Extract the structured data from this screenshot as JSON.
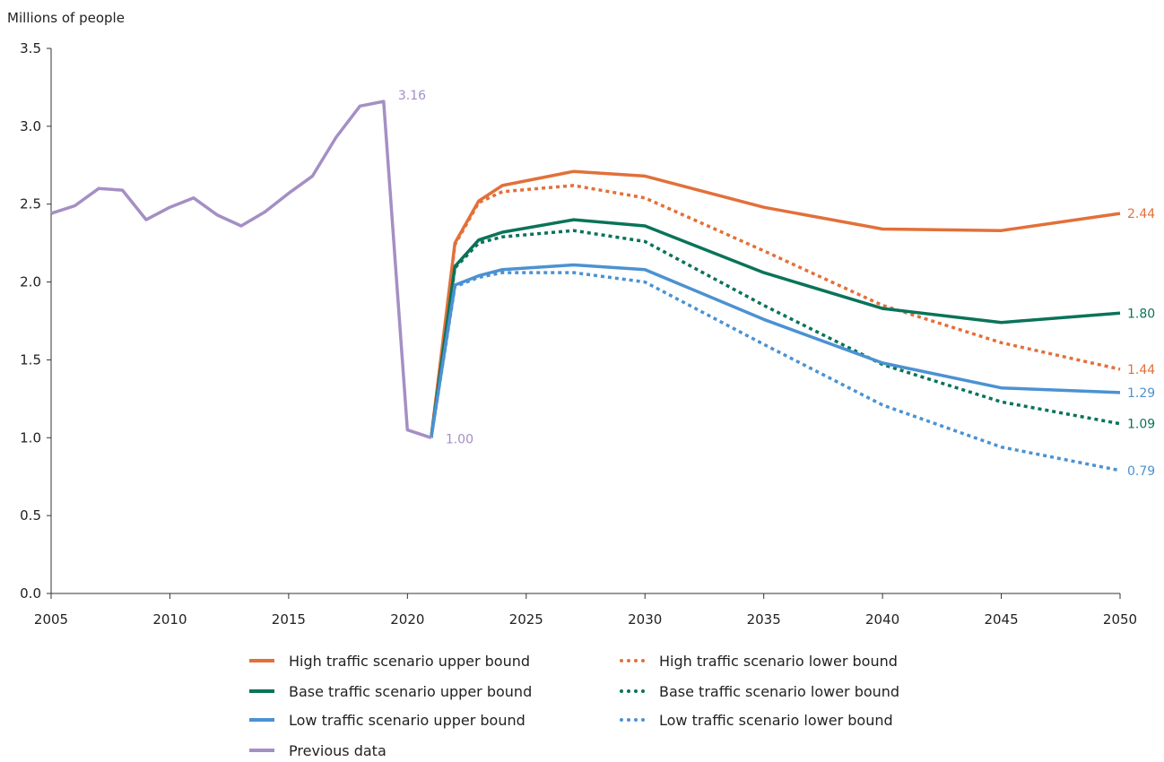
{
  "chart_data": {
    "type": "line",
    "ylabel": "Millions of people",
    "xlim": [
      2005,
      2050
    ],
    "ylim": [
      0,
      3.5
    ],
    "x_ticks": [
      "2005",
      "2010",
      "2015",
      "2020",
      "2025",
      "2030",
      "2035",
      "2040",
      "2045",
      "2050"
    ],
    "y_ticks": [
      "0.0",
      "0.5",
      "1.0",
      "1.5",
      "2.0",
      "2.5",
      "3.0",
      "3.5"
    ],
    "grid": false,
    "legend_position": "bottom",
    "series": [
      {
        "name": "Previous data",
        "color": "#a48fc4",
        "style": "solid",
        "x": [
          2005,
          2006,
          2007,
          2008,
          2009,
          2010,
          2011,
          2012,
          2013,
          2014,
          2015,
          2016,
          2017,
          2018,
          2019,
          2020,
          2021
        ],
        "y": [
          2.44,
          2.49,
          2.6,
          2.59,
          2.4,
          2.48,
          2.54,
          2.43,
          2.36,
          2.45,
          2.57,
          2.68,
          2.93,
          3.13,
          3.16,
          1.05,
          1.0
        ]
      },
      {
        "name": "High traffic scenario upper bound",
        "color": "#e2703a",
        "style": "solid",
        "x": [
          2021,
          2022,
          2023,
          2024,
          2027,
          2030,
          2035,
          2040,
          2045,
          2050
        ],
        "y": [
          1.0,
          2.25,
          2.52,
          2.62,
          2.71,
          2.68,
          2.48,
          2.34,
          2.33,
          2.44
        ]
      },
      {
        "name": "High traffic scenario lower bound",
        "color": "#e2703a",
        "style": "dotted",
        "x": [
          2021,
          2022,
          2023,
          2024,
          2027,
          2030,
          2035,
          2040,
          2045,
          2050
        ],
        "y": [
          1.0,
          2.24,
          2.51,
          2.58,
          2.62,
          2.54,
          2.2,
          1.85,
          1.61,
          1.44
        ]
      },
      {
        "name": "Base traffic scenario upper bound",
        "color": "#0a7359",
        "style": "solid",
        "x": [
          2021,
          2022,
          2023,
          2024,
          2027,
          2030,
          2035,
          2040,
          2045,
          2050
        ],
        "y": [
          1.0,
          2.1,
          2.27,
          2.32,
          2.4,
          2.36,
          2.06,
          1.83,
          1.74,
          1.8
        ]
      },
      {
        "name": "Base traffic scenario lower bound",
        "color": "#0a7359",
        "style": "dotted",
        "x": [
          2021,
          2022,
          2023,
          2024,
          2027,
          2030,
          2035,
          2040,
          2045,
          2050
        ],
        "y": [
          1.0,
          2.09,
          2.25,
          2.29,
          2.33,
          2.26,
          1.85,
          1.47,
          1.23,
          1.09
        ]
      },
      {
        "name": "Low traffic scenario upper bound",
        "color": "#4b92d2",
        "style": "solid",
        "x": [
          2021,
          2022,
          2023,
          2024,
          2027,
          2030,
          2035,
          2040,
          2045,
          2050
        ],
        "y": [
          1.0,
          1.98,
          2.04,
          2.08,
          2.11,
          2.08,
          1.76,
          1.48,
          1.32,
          1.29
        ]
      },
      {
        "name": "Low traffic scenario lower bound",
        "color": "#4b92d2",
        "style": "dotted",
        "x": [
          2021,
          2022,
          2023,
          2024,
          2027,
          2030,
          2035,
          2040,
          2045,
          2050
        ],
        "y": [
          1.0,
          1.97,
          2.03,
          2.06,
          2.06,
          2.0,
          1.6,
          1.21,
          0.94,
          0.79
        ]
      }
    ],
    "annotations": [
      {
        "text": "3.16",
        "x": 2019,
        "y": 3.16,
        "color": "#a48fc4"
      },
      {
        "text": "1.00",
        "x": 2021,
        "y": 1.0,
        "color": "#a48fc4"
      },
      {
        "text": "2.44",
        "x": 2050,
        "y": 2.44,
        "color": "#e2703a"
      },
      {
        "text": "1.80",
        "x": 2050,
        "y": 1.8,
        "color": "#0a7359"
      },
      {
        "text": "1.44",
        "x": 2050,
        "y": 1.44,
        "color": "#e2703a"
      },
      {
        "text": "1.29",
        "x": 2050,
        "y": 1.29,
        "color": "#4b92d2"
      },
      {
        "text": "1.09",
        "x": 2050,
        "y": 1.09,
        "color": "#0a7359"
      },
      {
        "text": "0.79",
        "x": 2050,
        "y": 0.79,
        "color": "#4b92d2"
      }
    ]
  },
  "legend": {
    "items": [
      {
        "label": "High traffic scenario upper bound",
        "color": "#e2703a",
        "style": "solid"
      },
      {
        "label": "High traffic scenario lower bound",
        "color": "#e2703a",
        "style": "dotted"
      },
      {
        "label": "Base traffic scenario upper bound",
        "color": "#0a7359",
        "style": "solid"
      },
      {
        "label": "Base traffic scenario lower bound",
        "color": "#0a7359",
        "style": "dotted"
      },
      {
        "label": "Low traffic scenario upper bound",
        "color": "#4b92d2",
        "style": "solid"
      },
      {
        "label": "Low traffic scenario lower bound",
        "color": "#4b92d2",
        "style": "dotted"
      },
      {
        "label": "Previous data",
        "color": "#a48fc4",
        "style": "solid"
      }
    ]
  }
}
